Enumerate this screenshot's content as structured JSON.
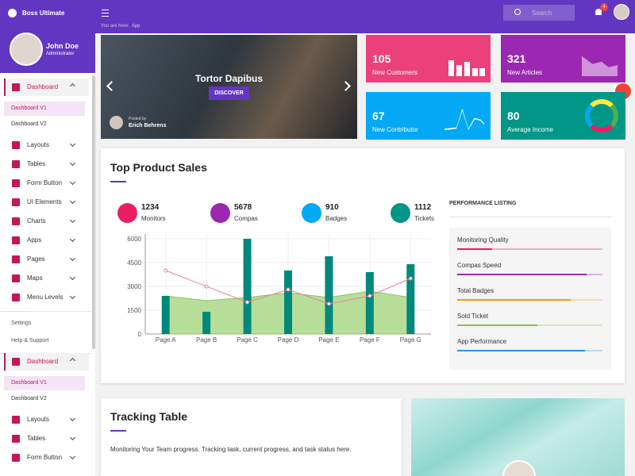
{
  "header": {
    "brand": "Boss Ultimate",
    "search_placeholder": "Search",
    "notification_count": 4
  },
  "breadcrumb": {
    "label": "You are here:",
    "current": "App"
  },
  "profile": {
    "name": "John Doe",
    "role": "Administrator"
  },
  "sidebar": {
    "menu": [
      {
        "label": "Dashboard",
        "children": [
          "Dashboard V1",
          "Dashboard V2"
        ]
      },
      {
        "label": "Layouts"
      },
      {
        "label": "Tables"
      },
      {
        "label": "Form Button"
      },
      {
        "label": "UI Elements"
      },
      {
        "label": "Charts"
      },
      {
        "label": "Apps"
      },
      {
        "label": "Pages"
      },
      {
        "label": "Maps"
      },
      {
        "label": "Menu Levels"
      }
    ],
    "links": [
      "Settings",
      "Help & Support"
    ],
    "menu_2": [
      {
        "label": "Dashboard",
        "children": [
          "Dashboard V1",
          "Dashboard V2"
        ]
      },
      {
        "label": "Layouts"
      },
      {
        "label": "Tables"
      },
      {
        "label": "Form Button"
      }
    ]
  },
  "hero": {
    "title": "Tortor Dapibus",
    "button": "DISCOVER",
    "posted_by": "Posted by",
    "author": "Erich Behrens"
  },
  "cards": [
    {
      "value": 105,
      "label": "New Customers",
      "color": "#ec407a"
    },
    {
      "value": 321,
      "label": "New Articles",
      "color": "#9c27b0"
    },
    {
      "value": 67,
      "label": "New Contributor",
      "color": "#03a9f4"
    },
    {
      "value": 80,
      "label": "Average Income",
      "color": "#009688"
    }
  ],
  "sales": {
    "title": "Top Product Sales",
    "stats": [
      {
        "value": 1234,
        "label": "Monitors",
        "color": "#e91e63"
      },
      {
        "value": 5678,
        "label": "Compas",
        "color": "#9c27b0"
      },
      {
        "value": 910,
        "label": "Badges",
        "color": "#03a9f4"
      },
      {
        "value": 1112,
        "label": "Tickets",
        "color": "#009688"
      }
    ],
    "performance": {
      "title": "PERFORMANCE LISTING",
      "items": [
        {
          "label": "Monitoring Quality",
          "value": 24,
          "color": "#e91e63"
        },
        {
          "label": "Compas Speed",
          "value": 89,
          "color": "#9c27b0"
        },
        {
          "label": "Total Badges",
          "value": 78,
          "color": "#ff9800"
        },
        {
          "label": "Sold Ticket",
          "value": 55,
          "color": "#8bc34a"
        },
        {
          "label": "App Performance",
          "value": 88,
          "color": "#2196f3"
        }
      ]
    }
  },
  "chart_data": {
    "type": "composed",
    "categories": [
      "Page A",
      "Page B",
      "Page C",
      "Page D",
      "Page E",
      "Page F",
      "Page G"
    ],
    "ylim": [
      0,
      6000
    ],
    "yticks": [
      0,
      1500,
      3000,
      4500,
      6000
    ],
    "grid": true,
    "series": [
      {
        "type": "area",
        "color": "#a5d67f",
        "values": [
          2400,
          2100,
          2300,
          2600,
          2300,
          2700,
          2300
        ]
      },
      {
        "type": "bar",
        "color": "#00897b",
        "values": [
          2400,
          1400,
          6000,
          4000,
          4900,
          3900,
          4400
        ]
      },
      {
        "type": "line",
        "color": "#ef7f9a",
        "values": [
          4000,
          3000,
          2000,
          2800,
          1900,
          2400,
          3500
        ]
      }
    ]
  },
  "tracking": {
    "title": "Tracking Table",
    "description": "Monitoring Your Team progress. Tracking task, current progress, and task status here."
  }
}
